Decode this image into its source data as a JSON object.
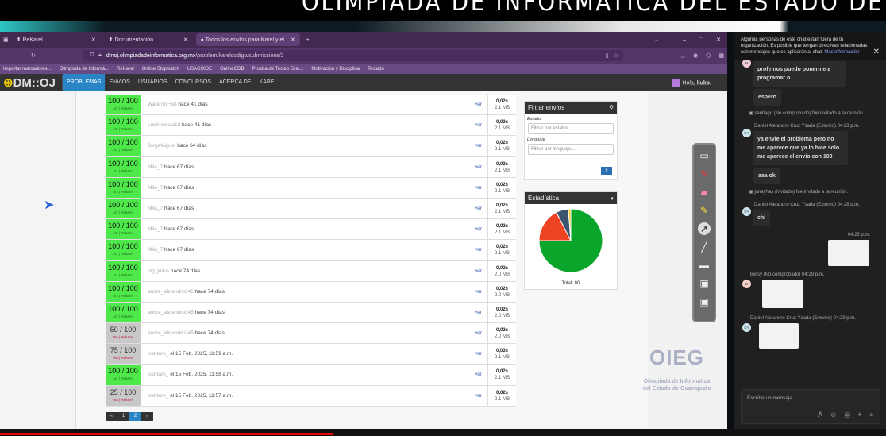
{
  "banner": {
    "title": "OLIMPIADA DE INFORMATICA DEL ESTADO DE GUANAJUATO"
  },
  "browser": {
    "tabs": [
      {
        "label": "ReKarel",
        "active": false
      },
      {
        "label": "Documentación",
        "active": false
      },
      {
        "label": "Todos los envíos para Karel y el",
        "active": true
      }
    ],
    "url_domain": "dmoj.olimpiadadeinformatica.org.mx",
    "url_path": "/problem/karelcodigo/submissions/2",
    "bookmarks": [
      "Importar marcadores...",
      "Olimpiada de Informá...",
      "ReKarel",
      "Online Stopwatch",
      "USACOIDE",
      "OnlineGDB",
      "Prueba de Tecleo Grat...",
      "Motivacion y Disciplina",
      "Teclado"
    ]
  },
  "site": {
    "logo": "DM::OJ",
    "nav": [
      "PROBLEMAS",
      "ENVIOS",
      "USUARIOS",
      "CONCURSOS",
      "ACERCA DE",
      "KAREL"
    ],
    "active_nav": "PROBLEMAS",
    "greeting": "Hola,",
    "username": "kuko."
  },
  "submissions": [
    {
      "score": "100 / 100",
      "status": "AC",
      "lang": "Rekarel",
      "user": "WateronFish",
      "when": "hace 41 días",
      "time": "0,02s",
      "mem": "2.1 MB"
    },
    {
      "score": "100 / 100",
      "status": "AC",
      "lang": "Rekarel",
      "user": "LuisHerrera18",
      "when": "hace 41 días",
      "time": "0,03s",
      "mem": "2.1 MB"
    },
    {
      "score": "100 / 100",
      "status": "AC",
      "lang": "Rekarel",
      "user": "JorgeMiguel",
      "when": "hace 64 días",
      "time": "0,02s",
      "mem": "2.1 MB"
    },
    {
      "score": "100 / 100",
      "status": "AC",
      "lang": "Rekarel",
      "user": "Mila_7",
      "when": "hace 67 días",
      "time": "0,03s",
      "mem": "2.1 MB"
    },
    {
      "score": "100 / 100",
      "status": "AC",
      "lang": "Rekarel",
      "user": "Mila_7",
      "when": "hace 67 días",
      "time": "0,02s",
      "mem": "2.1 MB"
    },
    {
      "score": "100 / 100",
      "status": "AC",
      "lang": "Rekarel",
      "user": "Mila_7",
      "when": "hace 67 días",
      "time": "0,02s",
      "mem": "2.1 MB"
    },
    {
      "score": "100 / 100",
      "status": "AC",
      "lang": "Rekarel",
      "user": "Mila_7",
      "when": "hace 67 días",
      "time": "0,02s",
      "mem": "2.1 MB"
    },
    {
      "score": "100 / 100",
      "status": "AC",
      "lang": "Rekarel",
      "user": "Mila_7",
      "when": "hace 67 días",
      "time": "0,02s",
      "mem": "2.1 MB"
    },
    {
      "score": "100 / 100",
      "status": "AC",
      "lang": "Rekarel",
      "user": "ing_julius",
      "when": "hace 74 días",
      "time": "0,02s",
      "mem": "2.0 MB"
    },
    {
      "score": "100 / 100",
      "status": "AC",
      "lang": "Rekarel",
      "user": "andre_alejandro345",
      "when": "hace 74 días",
      "time": "0,02s",
      "mem": "2.0 MB"
    },
    {
      "score": "100 / 100",
      "status": "AC",
      "lang": "Rekarel",
      "user": "andre_alejandro345",
      "when": "hace 74 días",
      "time": "0,02s",
      "mem": "2.0 MB"
    },
    {
      "score": "50 / 100",
      "status": "WA",
      "lang": "Rekarel",
      "user": "andre_alejandro345",
      "when": "hace 74 días",
      "time": "0,02s",
      "mem": "2.0 MB"
    },
    {
      "score": "75 / 100",
      "status": "WA",
      "lang": "Rekarel",
      "user": "kishtarn_",
      "when": "el 15 Feb. 2025, 11:59 a.m.",
      "time": "0,03s",
      "mem": "2.1 MB"
    },
    {
      "score": "100 / 100",
      "status": "AC",
      "lang": "Rekarel",
      "user": "kishtarn_",
      "when": "el 15 Feb. 2025, 11:58 a.m.",
      "time": "0,02s",
      "mem": "2.1 MB"
    },
    {
      "score": "25 / 100",
      "status": "WA",
      "lang": "Rekarel",
      "user": "kishtarn_",
      "when": "el 15 Feb. 2025, 11:57 a.m.",
      "time": "0,02s",
      "mem": "2.1 MB"
    }
  ],
  "view_label": "ver",
  "pagination": {
    "prev": "«",
    "pages": [
      "1",
      "2"
    ],
    "current": "2",
    "next": "»"
  },
  "filter": {
    "title": "Filtrar envíos",
    "estado_label": "Estado",
    "estado_placeholder": "Filtrar por estatus...",
    "lenguaje_label": "Lenguaje",
    "lenguaje_placeholder": "Filtrar por lenguaje...",
    "go": "Ir"
  },
  "stats": {
    "title": "Estadística",
    "total_label": "Total: 80"
  },
  "chart_data": {
    "type": "pie",
    "values": [
      60,
      14,
      5,
      1
    ],
    "colors": [
      "#0aa52b",
      "#ef4423",
      "#3d5470",
      "#f3c623"
    ],
    "total": 80
  },
  "logo_watermark": {
    "abbr": "OIEG",
    "line1": "Olimpiada de Informática",
    "line2": "del Estado de Guanajuato"
  },
  "chat": {
    "notice": "Algunas personas de este chat están fuera de tu organización. Es posible que tengan directivas relacionadas con mensajes que se aplicarán al chat.",
    "notice_link": "Más información",
    "m1": "profe nos puedo ponerme a programar o",
    "m2": "espero",
    "sys1": "santiago (No comprobado) fue invitado a la reunión.",
    "meta1": "Daniel Alejandro Cruz Ysada (Externo)  04:23 p.m.",
    "m3": "ya envie el problema pero no me aparece que ya lo hice solo me aparece el envio con 100",
    "m4": "aaa ok",
    "sys2": "janayhas (Invitado) fue invitado a la reunión.",
    "meta2": "Daniel Alejandro Cruz Ysada (Externo)  04:28 p.m.",
    "m5": "chi",
    "meta3": "04:29 p.m.",
    "meta4": "Betsy (No comprobado)  04:29 p.m.",
    "meta5": "Daniel Alejandro Cruz Ysada (Externo)  04:29 p.m.",
    "av_m": "M",
    "av_dy": "DY",
    "av_b": "B",
    "compose_placeholder": "Escribe un mensaje"
  }
}
